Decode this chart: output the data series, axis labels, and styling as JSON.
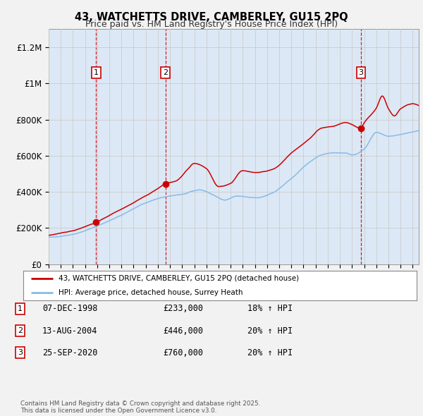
{
  "title": "43, WATCHETTS DRIVE, CAMBERLEY, GU15 2PQ",
  "subtitle": "Price paid vs. HM Land Registry's House Price Index (HPI)",
  "fig_bg_color": "#f2f2f2",
  "plot_bg_color": "#ffffff",
  "shade_color": "#dce8f5",
  "grid_color": "#cccccc",
  "red_line_color": "#cc0000",
  "blue_line_color": "#88bbe8",
  "vline_color": "#cc0000",
  "ylim": [
    0,
    1300000
  ],
  "yticks": [
    0,
    200000,
    400000,
    600000,
    800000,
    1000000,
    1200000
  ],
  "ytick_labels": [
    "£0",
    "£200K",
    "£400K",
    "£600K",
    "£800K",
    "£1M",
    "£1.2M"
  ],
  "x_start_year": 1995.0,
  "x_end_year": 2025.5,
  "sales": [
    {
      "num": 1,
      "date": "07-DEC-1998",
      "price": 233000,
      "pct": "18%",
      "dir": "↑",
      "year": 1998.92
    },
    {
      "num": 2,
      "date": "13-AUG-2004",
      "price": 446000,
      "pct": "20%",
      "dir": "↑",
      "year": 2004.62
    },
    {
      "num": 3,
      "date": "25-SEP-2020",
      "price": 760000,
      "pct": "20%",
      "dir": "↑",
      "year": 2020.73
    }
  ],
  "legend_label_red": "43, WATCHETTS DRIVE, CAMBERLEY, GU15 2PQ (detached house)",
  "legend_label_blue": "HPI: Average price, detached house, Surrey Heath",
  "footnote": "Contains HM Land Registry data © Crown copyright and database right 2025.\nThis data is licensed under the Open Government Licence v3.0."
}
